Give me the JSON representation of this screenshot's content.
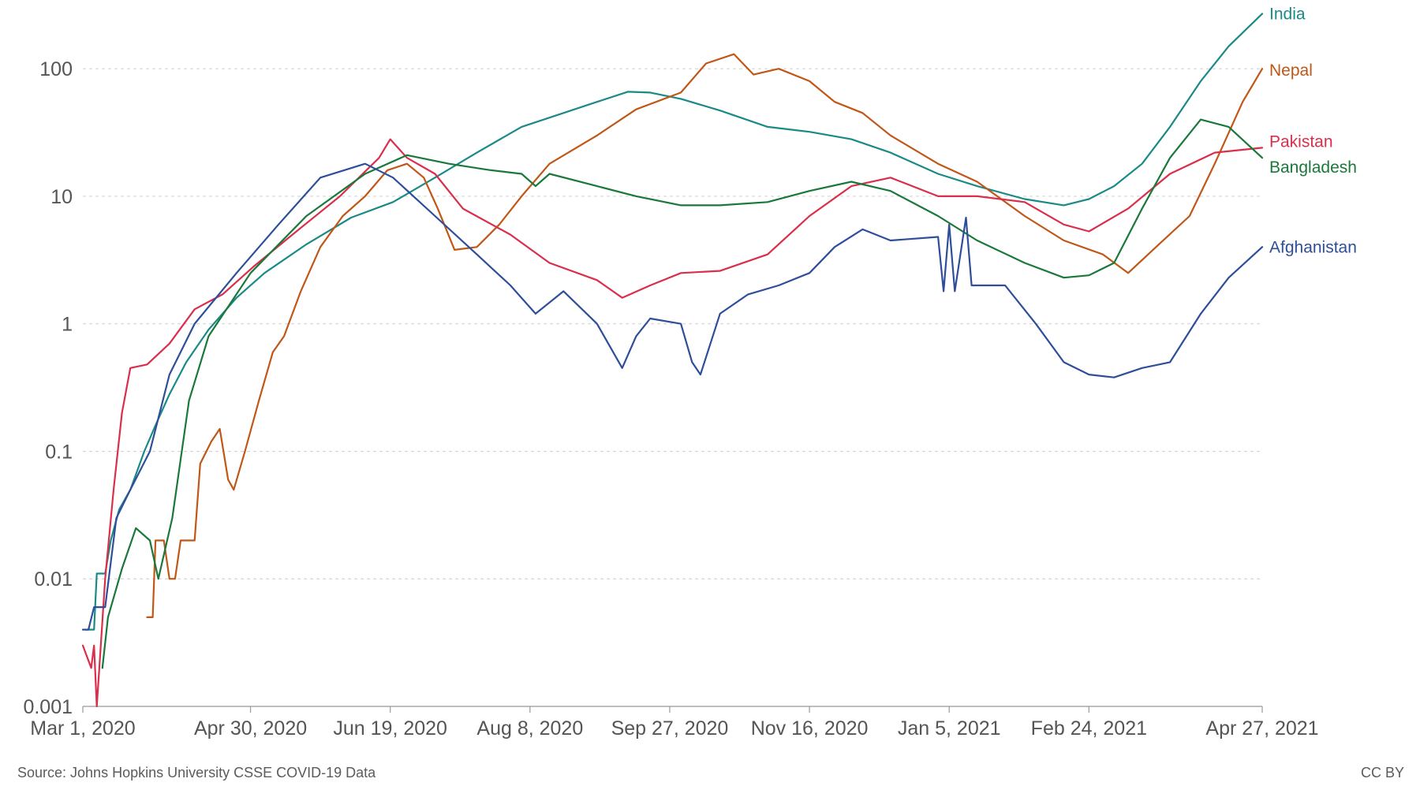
{
  "chart_data": {
    "type": "line",
    "y_scale": "log",
    "ylim": [
      0.001,
      300
    ],
    "y_ticks": [
      {
        "value": 0.001,
        "label": "0.001"
      },
      {
        "value": 0.01,
        "label": "0.01"
      },
      {
        "value": 0.1,
        "label": "0.1"
      },
      {
        "value": 1,
        "label": "1"
      },
      {
        "value": 10,
        "label": "10"
      },
      {
        "value": 100,
        "label": "100"
      }
    ],
    "xlim": [
      "2020-03-01",
      "2021-04-27"
    ],
    "x_ticks": [
      {
        "date": "2020-03-01",
        "label": "Mar 1, 2020"
      },
      {
        "date": "2020-04-30",
        "label": "Apr 30, 2020"
      },
      {
        "date": "2020-06-19",
        "label": "Jun 19, 2020"
      },
      {
        "date": "2020-08-08",
        "label": "Aug 8, 2020"
      },
      {
        "date": "2020-09-27",
        "label": "Sep 27, 2020"
      },
      {
        "date": "2020-11-16",
        "label": "Nov 16, 2020"
      },
      {
        "date": "2021-01-05",
        "label": "Jan 5, 2021"
      },
      {
        "date": "2021-02-24",
        "label": "Feb 24, 2021"
      },
      {
        "date": "2021-04-27",
        "label": "Apr 27, 2021"
      }
    ],
    "grid": "horizontal-dashed",
    "legend": "inline labels at line ends (right)",
    "series": [
      {
        "name": "India",
        "color": "#1a8a86",
        "points": [
          [
            "2020-03-02",
            0.004
          ],
          [
            "2020-03-05",
            0.004
          ],
          [
            "2020-03-06",
            0.011
          ],
          [
            "2020-03-09",
            0.011
          ],
          [
            "2020-03-11",
            0.02
          ],
          [
            "2020-03-14",
            0.035
          ],
          [
            "2020-03-18",
            0.05
          ],
          [
            "2020-03-23",
            0.1
          ],
          [
            "2020-03-27",
            0.16
          ],
          [
            "2020-04-01",
            0.28
          ],
          [
            "2020-04-07",
            0.5
          ],
          [
            "2020-04-15",
            0.9
          ],
          [
            "2020-04-25",
            1.6
          ],
          [
            "2020-05-05",
            2.5
          ],
          [
            "2020-05-20",
            4.2
          ],
          [
            "2020-06-05",
            6.8
          ],
          [
            "2020-06-20",
            9
          ],
          [
            "2020-07-05",
            14
          ],
          [
            "2020-07-20",
            22
          ],
          [
            "2020-08-05",
            35
          ],
          [
            "2020-08-20",
            45
          ],
          [
            "2020-09-01",
            55
          ],
          [
            "2020-09-12",
            66
          ],
          [
            "2020-09-20",
            65
          ],
          [
            "2020-10-01",
            58
          ],
          [
            "2020-10-15",
            47
          ],
          [
            "2020-11-01",
            35
          ],
          [
            "2020-11-16",
            32
          ],
          [
            "2020-12-01",
            28
          ],
          [
            "2020-12-15",
            22
          ],
          [
            "2021-01-01",
            15
          ],
          [
            "2021-01-15",
            12
          ],
          [
            "2021-02-01",
            9.5
          ],
          [
            "2021-02-15",
            8.5
          ],
          [
            "2021-02-24",
            9.5
          ],
          [
            "2021-03-05",
            12
          ],
          [
            "2021-03-15",
            18
          ],
          [
            "2021-03-25",
            35
          ],
          [
            "2021-04-05",
            80
          ],
          [
            "2021-04-15",
            150
          ],
          [
            "2021-04-27",
            270
          ]
        ]
      },
      {
        "name": "Nepal",
        "color": "#c05717",
        "points": [
          [
            "2020-03-24",
            0.005
          ],
          [
            "2020-03-26",
            0.005
          ],
          [
            "2020-03-27",
            0.02
          ],
          [
            "2020-03-30",
            0.02
          ],
          [
            "2020-04-01",
            0.01
          ],
          [
            "2020-04-03",
            0.01
          ],
          [
            "2020-04-05",
            0.02
          ],
          [
            "2020-04-10",
            0.02
          ],
          [
            "2020-04-12",
            0.08
          ],
          [
            "2020-04-16",
            0.12
          ],
          [
            "2020-04-19",
            0.15
          ],
          [
            "2020-04-22",
            0.06
          ],
          [
            "2020-04-24",
            0.05
          ],
          [
            "2020-04-28",
            0.1
          ],
          [
            "2020-05-03",
            0.25
          ],
          [
            "2020-05-08",
            0.6
          ],
          [
            "2020-05-12",
            0.8
          ],
          [
            "2020-05-18",
            1.8
          ],
          [
            "2020-05-25",
            4
          ],
          [
            "2020-06-02",
            7
          ],
          [
            "2020-06-10",
            10
          ],
          [
            "2020-06-18",
            16
          ],
          [
            "2020-06-25",
            18
          ],
          [
            "2020-07-01",
            14
          ],
          [
            "2020-07-06",
            8
          ],
          [
            "2020-07-12",
            3.8
          ],
          [
            "2020-07-20",
            4
          ],
          [
            "2020-07-28",
            6
          ],
          [
            "2020-08-05",
            10
          ],
          [
            "2020-08-15",
            18
          ],
          [
            "2020-09-01",
            30
          ],
          [
            "2020-09-15",
            48
          ],
          [
            "2020-10-01",
            65
          ],
          [
            "2020-10-10",
            110
          ],
          [
            "2020-10-20",
            130
          ],
          [
            "2020-10-27",
            90
          ],
          [
            "2020-11-05",
            100
          ],
          [
            "2020-11-16",
            80
          ],
          [
            "2020-11-25",
            55
          ],
          [
            "2020-12-05",
            45
          ],
          [
            "2020-12-15",
            30
          ],
          [
            "2021-01-01",
            18
          ],
          [
            "2021-01-15",
            13
          ],
          [
            "2021-02-01",
            7
          ],
          [
            "2021-02-15",
            4.5
          ],
          [
            "2021-03-01",
            3.5
          ],
          [
            "2021-03-10",
            2.5
          ],
          [
            "2021-03-20",
            4
          ],
          [
            "2021-04-01",
            7
          ],
          [
            "2021-04-10",
            18
          ],
          [
            "2021-04-20",
            55
          ],
          [
            "2021-04-27",
            100
          ]
        ]
      },
      {
        "name": "Pakistan",
        "color": "#d92f4b",
        "points": [
          [
            "2020-03-01",
            0.003
          ],
          [
            "2020-03-04",
            0.002
          ],
          [
            "2020-03-05",
            0.003
          ],
          [
            "2020-03-06",
            0.001
          ],
          [
            "2020-03-09",
            0.01
          ],
          [
            "2020-03-12",
            0.05
          ],
          [
            "2020-03-15",
            0.2
          ],
          [
            "2020-03-18",
            0.45
          ],
          [
            "2020-03-24",
            0.48
          ],
          [
            "2020-04-01",
            0.7
          ],
          [
            "2020-04-10",
            1.3
          ],
          [
            "2020-04-20",
            1.7
          ],
          [
            "2020-05-01",
            2.8
          ],
          [
            "2020-05-15",
            5
          ],
          [
            "2020-06-01",
            10
          ],
          [
            "2020-06-15",
            20
          ],
          [
            "2020-06-19",
            28
          ],
          [
            "2020-06-25",
            20
          ],
          [
            "2020-07-05",
            15
          ],
          [
            "2020-07-15",
            8
          ],
          [
            "2020-08-01",
            5
          ],
          [
            "2020-08-15",
            3
          ],
          [
            "2020-09-01",
            2.2
          ],
          [
            "2020-09-10",
            1.6
          ],
          [
            "2020-09-20",
            2
          ],
          [
            "2020-10-01",
            2.5
          ],
          [
            "2020-10-15",
            2.6
          ],
          [
            "2020-11-01",
            3.5
          ],
          [
            "2020-11-16",
            7
          ],
          [
            "2020-12-01",
            12
          ],
          [
            "2020-12-15",
            14
          ],
          [
            "2021-01-01",
            10
          ],
          [
            "2021-01-15",
            10
          ],
          [
            "2021-02-01",
            9
          ],
          [
            "2021-02-15",
            6
          ],
          [
            "2021-02-24",
            5.3
          ],
          [
            "2021-03-10",
            8
          ],
          [
            "2021-03-25",
            15
          ],
          [
            "2021-04-10",
            22
          ],
          [
            "2021-04-27",
            24
          ]
        ]
      },
      {
        "name": "Bangladesh",
        "color": "#19783a",
        "points": [
          [
            "2020-03-08",
            0.002
          ],
          [
            "2020-03-10",
            0.005
          ],
          [
            "2020-03-15",
            0.012
          ],
          [
            "2020-03-20",
            0.025
          ],
          [
            "2020-03-25",
            0.02
          ],
          [
            "2020-03-28",
            0.01
          ],
          [
            "2020-04-02",
            0.03
          ],
          [
            "2020-04-08",
            0.25
          ],
          [
            "2020-04-15",
            0.8
          ],
          [
            "2020-04-30",
            2.5
          ],
          [
            "2020-05-20",
            7
          ],
          [
            "2020-06-10",
            15
          ],
          [
            "2020-06-25",
            21
          ],
          [
            "2020-07-10",
            18
          ],
          [
            "2020-07-25",
            16
          ],
          [
            "2020-08-05",
            15
          ],
          [
            "2020-08-10",
            12
          ],
          [
            "2020-08-15",
            15
          ],
          [
            "2020-09-01",
            12
          ],
          [
            "2020-09-15",
            10
          ],
          [
            "2020-10-01",
            8.5
          ],
          [
            "2020-10-15",
            8.5
          ],
          [
            "2020-11-01",
            9
          ],
          [
            "2020-11-16",
            11
          ],
          [
            "2020-12-01",
            13
          ],
          [
            "2020-12-15",
            11
          ],
          [
            "2021-01-01",
            7
          ],
          [
            "2021-01-15",
            4.5
          ],
          [
            "2021-02-01",
            3
          ],
          [
            "2021-02-15",
            2.3
          ],
          [
            "2021-02-24",
            2.4
          ],
          [
            "2021-03-05",
            3
          ],
          [
            "2021-03-15",
            8
          ],
          [
            "2021-03-25",
            20
          ],
          [
            "2021-04-05",
            40
          ],
          [
            "2021-04-15",
            35
          ],
          [
            "2021-04-27",
            20
          ]
        ]
      },
      {
        "name": "Afghanistan",
        "color": "#2e4e9a",
        "points": [
          [
            "2020-03-01",
            0.004
          ],
          [
            "2020-03-03",
            0.004
          ],
          [
            "2020-03-05",
            0.006
          ],
          [
            "2020-03-09",
            0.006
          ],
          [
            "2020-03-13",
            0.03
          ],
          [
            "2020-03-18",
            0.05
          ],
          [
            "2020-03-25",
            0.1
          ],
          [
            "2020-04-01",
            0.4
          ],
          [
            "2020-04-10",
            1
          ],
          [
            "2020-04-25",
            2.5
          ],
          [
            "2020-05-10",
            6
          ],
          [
            "2020-05-25",
            14
          ],
          [
            "2020-06-10",
            18
          ],
          [
            "2020-06-20",
            14
          ],
          [
            "2020-07-05",
            7
          ],
          [
            "2020-07-20",
            3.5
          ],
          [
            "2020-08-01",
            2
          ],
          [
            "2020-08-10",
            1.2
          ],
          [
            "2020-08-20",
            1.8
          ],
          [
            "2020-09-01",
            1
          ],
          [
            "2020-09-10",
            0.45
          ],
          [
            "2020-09-15",
            0.8
          ],
          [
            "2020-09-20",
            1.1
          ],
          [
            "2020-10-01",
            1
          ],
          [
            "2020-10-05",
            0.5
          ],
          [
            "2020-10-08",
            0.4
          ],
          [
            "2020-10-15",
            1.2
          ],
          [
            "2020-10-25",
            1.7
          ],
          [
            "2020-11-05",
            2
          ],
          [
            "2020-11-16",
            2.5
          ],
          [
            "2020-11-25",
            4
          ],
          [
            "2020-12-05",
            5.5
          ],
          [
            "2020-12-15",
            4.5
          ],
          [
            "2021-01-01",
            4.8
          ],
          [
            "2021-01-03",
            1.8
          ],
          [
            "2021-01-05",
            6
          ],
          [
            "2021-01-07",
            1.8
          ],
          [
            "2021-01-11",
            6.8
          ],
          [
            "2021-01-13",
            2
          ],
          [
            "2021-01-25",
            2
          ],
          [
            "2021-02-05",
            1
          ],
          [
            "2021-02-15",
            0.5
          ],
          [
            "2021-02-24",
            0.4
          ],
          [
            "2021-03-05",
            0.38
          ],
          [
            "2021-03-15",
            0.45
          ],
          [
            "2021-03-25",
            0.5
          ],
          [
            "2021-04-05",
            1.2
          ],
          [
            "2021-04-15",
            2.3
          ],
          [
            "2021-04-27",
            4
          ]
        ]
      }
    ]
  },
  "footer": {
    "source": "Source: Johns Hopkins University CSSE COVID-19 Data",
    "license": "CC BY"
  }
}
